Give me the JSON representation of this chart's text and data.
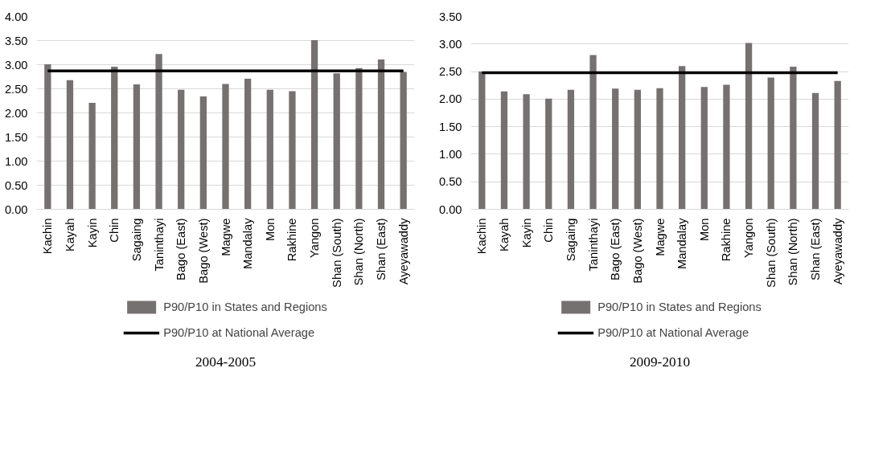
{
  "chart_data": [
    {
      "type": "bar",
      "title": "2004-2005",
      "categories": [
        "Kachin",
        "Kayah",
        "Kayin",
        "Chin",
        "Sagaing",
        "Taninthayi",
        "Bago (East)",
        "Bago (West)",
        "Magwe",
        "Mandalay",
        "Mon",
        "Rakhine",
        "Yangon",
        "Shan (South)",
        "Shan (North)",
        "Shan (East)",
        "Ayeyawaddy"
      ],
      "series": [
        {
          "name": "P90/P10 in States and Regions",
          "color": "#767171",
          "values": [
            3.01,
            2.68,
            2.21,
            2.96,
            2.59,
            3.22,
            2.48,
            2.34,
            2.6,
            2.71,
            2.48,
            2.45,
            3.51,
            2.82,
            2.93,
            3.11,
            2.85
          ]
        },
        {
          "name": "P90/P10 at National Average",
          "type": "line",
          "color": "#000000",
          "values": [
            2.87,
            2.87,
            2.87,
            2.87,
            2.87,
            2.87,
            2.87,
            2.87,
            2.87,
            2.87,
            2.87,
            2.87,
            2.87,
            2.87,
            2.87,
            2.87,
            2.87
          ]
        }
      ],
      "ylim": [
        0,
        4
      ],
      "yticks": [
        {
          "value": 0,
          "label": "0.00"
        },
        {
          "value": 0.5,
          "label": "0.50"
        },
        {
          "value": 1,
          "label": "1.00"
        },
        {
          "value": 1.5,
          "label": "1.50"
        },
        {
          "value": 2,
          "label": "2.00"
        },
        {
          "value": 2.5,
          "label": "2.50"
        },
        {
          "value": 3,
          "label": "3.00"
        },
        {
          "value": 3.5,
          "label": "3.50"
        },
        {
          "value": 4,
          "label": "4.00"
        }
      ],
      "grid": "y",
      "legend": "bottom"
    },
    {
      "type": "bar",
      "title": "2009-2010",
      "categories": [
        "Kachin",
        "Kayah",
        "Kayin",
        "Chin",
        "Sagaing",
        "Taninthayi",
        "Bago (East)",
        "Bago (West)",
        "Magwe",
        "Mandalay",
        "Mon",
        "Rakhine",
        "Yangon",
        "Shan (South)",
        "Shan (North)",
        "Shan (East)",
        "Ayeyawaddy"
      ],
      "series": [
        {
          "name": "P90/P10 in States and Regions",
          "color": "#767171",
          "values": [
            2.5,
            2.14,
            2.09,
            2.01,
            2.17,
            2.8,
            2.19,
            2.17,
            2.2,
            2.6,
            2.22,
            2.26,
            3.02,
            2.39,
            2.59,
            2.11,
            2.33
          ]
        },
        {
          "name": "P90/P10 at National Average",
          "type": "line",
          "color": "#000000",
          "values": [
            2.48,
            2.48,
            2.48,
            2.48,
            2.48,
            2.48,
            2.48,
            2.48,
            2.48,
            2.48,
            2.48,
            2.48,
            2.48,
            2.48,
            2.48,
            2.48,
            2.48
          ]
        }
      ],
      "ylim": [
        0,
        3.5
      ],
      "yticks": [
        {
          "value": 0,
          "label": "0.00"
        },
        {
          "value": 0.5,
          "label": "0.50"
        },
        {
          "value": 1,
          "label": "1.00"
        },
        {
          "value": 1.5,
          "label": "1.50"
        },
        {
          "value": 2,
          "label": "2.00"
        },
        {
          "value": 2.5,
          "label": "2.50"
        },
        {
          "value": 3,
          "label": "3.00"
        },
        {
          "value": 3.5,
          "label": "3.50"
        }
      ],
      "grid": "y",
      "legend": "bottom"
    }
  ]
}
